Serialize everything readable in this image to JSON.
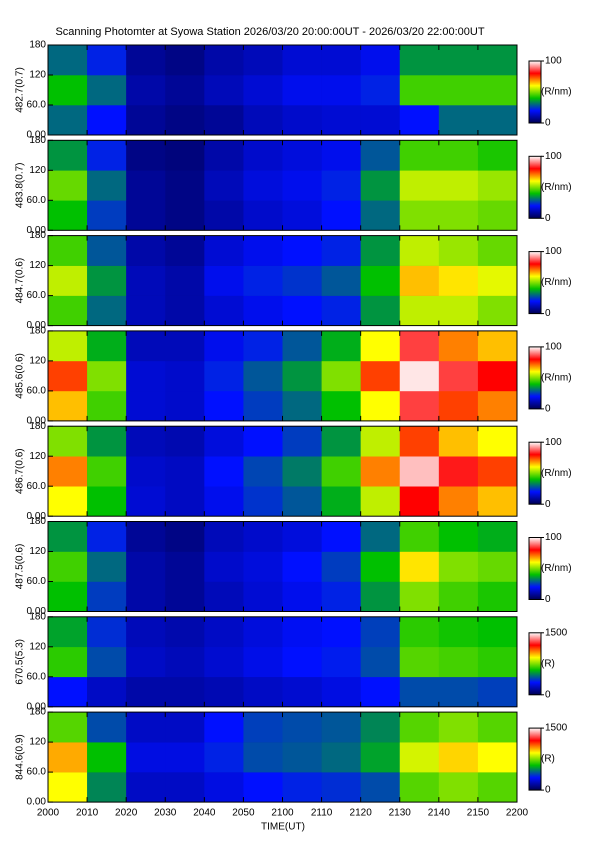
{
  "chart_data": {
    "type": "heatmap",
    "title": "Scanning Photomter at Syowa Station 2026/03/20 20:00:00UT - 2026/03/20 22:00:00UT",
    "xlabel": "TIME(UT)",
    "xlim": [
      0,
      120
    ],
    "xticks": [
      {
        "value": 0,
        "label": "2000"
      },
      {
        "value": 10,
        "label": "2010"
      },
      {
        "value": 20,
        "label": "2020"
      },
      {
        "value": 30,
        "label": "2030"
      },
      {
        "value": 40,
        "label": "2040"
      },
      {
        "value": 50,
        "label": "2050"
      },
      {
        "value": 60,
        "label": "2100"
      },
      {
        "value": 70,
        "label": "2110"
      },
      {
        "value": 80,
        "label": "2120"
      },
      {
        "value": 90,
        "label": "2130"
      },
      {
        "value": 100,
        "label": "2140"
      },
      {
        "value": 110,
        "label": "2150"
      },
      {
        "value": 120,
        "label": "2200"
      }
    ],
    "x_bins": [
      0,
      10,
      20,
      30,
      40,
      50,
      60,
      70,
      80,
      90,
      100,
      110,
      120
    ],
    "colormap": [
      "#000050",
      "#0010ff",
      "#00c000",
      "#ffff00",
      "#ff0000",
      "#ffffff"
    ],
    "panels": [
      {
        "ylabel": "482.7(0.7)",
        "ylim": [
          0,
          180
        ],
        "yticks": [
          {
            "value": 0,
            "label": "0.00"
          },
          {
            "value": 60,
            "label": "60.0"
          },
          120,
          180
        ],
        "y_bins": [
          0,
          60,
          120,
          180
        ],
        "clim": [
          0,
          100
        ],
        "cticks": [
          0,
          100
        ],
        "clabel": "(R/nm)",
        "z": [
          [
            30,
            20,
            8,
            6,
            8,
            12,
            14,
            15,
            15,
            20,
            30,
            30
          ],
          [
            40,
            30,
            10,
            8,
            12,
            15,
            18,
            18,
            22,
            45,
            45,
            45
          ],
          [
            30,
            22,
            8,
            6,
            10,
            12,
            15,
            15,
            18,
            35,
            35,
            35
          ]
        ]
      },
      {
        "ylabel": "483.8(0.7)",
        "ylim": [
          0,
          180
        ],
        "yticks": [
          {
            "value": 0,
            "label": "0.00"
          },
          {
            "value": 60,
            "label": "60.0"
          },
          120,
          180
        ],
        "y_bins": [
          0,
          60,
          120,
          180
        ],
        "clim": [
          0,
          100
        ],
        "cticks": [
          0,
          100
        ],
        "clabel": "(R/nm)",
        "z": [
          [
            40,
            25,
            8,
            6,
            10,
            14,
            16,
            20,
            30,
            50,
            50,
            48
          ],
          [
            48,
            30,
            8,
            6,
            12,
            16,
            18,
            22,
            35,
            55,
            55,
            52
          ],
          [
            35,
            22,
            6,
            5,
            10,
            14,
            16,
            18,
            28,
            45,
            45,
            42
          ]
        ]
      },
      {
        "ylabel": "484.7(0.6)",
        "ylim": [
          0,
          180
        ],
        "yticks": [
          {
            "value": 0,
            "label": "0.00"
          },
          {
            "value": 60,
            "label": "60.0"
          },
          120,
          180
        ],
        "y_bins": [
          0,
          60,
          120,
          180
        ],
        "clim": [
          0,
          100
        ],
        "cticks": [
          0,
          100
        ],
        "clabel": "(R/nm)",
        "z": [
          [
            45,
            30,
            12,
            10,
            15,
            18,
            20,
            22,
            35,
            55,
            55,
            50
          ],
          [
            55,
            35,
            12,
            10,
            18,
            22,
            24,
            28,
            40,
            65,
            62,
            58
          ],
          [
            45,
            28,
            10,
            8,
            15,
            18,
            20,
            22,
            35,
            55,
            52,
            48
          ]
        ]
      },
      {
        "ylabel": "485.6(0.6)",
        "ylim": [
          0,
          180
        ],
        "yticks": [
          {
            "value": 0,
            "label": "0.00"
          },
          {
            "value": 60,
            "label": "60.0"
          },
          120,
          180
        ],
        "y_bins": [
          0,
          60,
          120,
          180
        ],
        "clim": [
          0,
          100
        ],
        "cticks": [
          0,
          100
        ],
        "clabel": "(R/nm)",
        "z": [
          [
            65,
            45,
            15,
            14,
            20,
            25,
            30,
            40,
            60,
            85,
            75,
            70
          ],
          [
            75,
            50,
            15,
            14,
            22,
            28,
            35,
            50,
            75,
            98,
            85,
            80
          ],
          [
            55,
            38,
            12,
            12,
            18,
            22,
            28,
            38,
            60,
            85,
            70,
            65
          ]
        ]
      },
      {
        "ylabel": "486.7(0.6)",
        "ylim": [
          0,
          180
        ],
        "yticks": [
          {
            "value": 0,
            "label": "0.00"
          },
          {
            "value": 60,
            "label": "60.0"
          },
          120,
          180
        ],
        "y_bins": [
          0,
          60,
          120,
          180
        ],
        "clim": [
          0,
          100
        ],
        "cticks": [
          0,
          100
        ],
        "clabel": "(R/nm)",
        "z": [
          [
            60,
            40,
            15,
            13,
            18,
            24,
            28,
            38,
            55,
            80,
            70,
            65
          ],
          [
            70,
            45,
            14,
            13,
            20,
            26,
            32,
            45,
            70,
            95,
            82,
            75
          ],
          [
            50,
            35,
            12,
            11,
            16,
            20,
            25,
            35,
            55,
            75,
            65,
            60
          ]
        ]
      },
      {
        "ylabel": "487.5(0.6)",
        "ylim": [
          0,
          180
        ],
        "yticks": [
          {
            "value": 0,
            "label": "0.00"
          },
          {
            "value": 60,
            "label": "60.0"
          },
          120,
          180
        ],
        "y_bins": [
          0,
          60,
          120,
          180
        ],
        "clim": [
          0,
          100
        ],
        "cticks": [
          0,
          100
        ],
        "clabel": "(R/nm)",
        "z": [
          [
            40,
            25,
            10,
            8,
            12,
            15,
            18,
            22,
            35,
            50,
            45,
            42
          ],
          [
            45,
            30,
            10,
            8,
            14,
            16,
            20,
            25,
            40,
            62,
            50,
            48
          ],
          [
            35,
            22,
            8,
            6,
            12,
            14,
            16,
            20,
            30,
            45,
            40,
            38
          ]
        ]
      },
      {
        "ylabel": "670.5(5.3)",
        "ylim": [
          0,
          180
        ],
        "yticks": [
          {
            "value": 0,
            "label": "0.00"
          },
          {
            "value": 60,
            "label": "60.0"
          },
          120,
          180
        ],
        "y_bins": [
          0,
          60,
          120,
          180
        ],
        "clim": [
          0,
          1500
        ],
        "cticks": [
          0,
          1500
        ],
        "clabel": "(R)",
        "z": [
          [
            300,
            200,
            150,
            150,
            170,
            200,
            220,
            250,
            300,
            400,
            400,
            380
          ],
          [
            650,
            400,
            200,
            180,
            220,
            260,
            300,
            320,
            400,
            700,
            680,
            650
          ],
          [
            550,
            350,
            180,
            160,
            200,
            240,
            280,
            300,
            380,
            650,
            620,
            600
          ]
        ]
      },
      {
        "ylabel": "844.6(0.9)",
        "ylim": [
          0,
          180
        ],
        "yticks": [
          {
            "value": 0,
            "label": "0.00"
          },
          {
            "value": 60,
            "label": "60.0"
          },
          120,
          180
        ],
        "y_bins": [
          0,
          60,
          120,
          180
        ],
        "clim": [
          0,
          1500
        ],
        "cticks": [
          0,
          1500
        ],
        "clabel": "(R)",
        "z": [
          [
            900,
            500,
            200,
            200,
            250,
            300,
            330,
            350,
            400,
            700,
            750,
            700
          ],
          [
            1000,
            600,
            250,
            250,
            330,
            400,
            420,
            450,
            550,
            850,
            950,
            900
          ],
          [
            700,
            400,
            200,
            200,
            300,
            380,
            400,
            420,
            500,
            700,
            750,
            700
          ]
        ]
      }
    ]
  }
}
